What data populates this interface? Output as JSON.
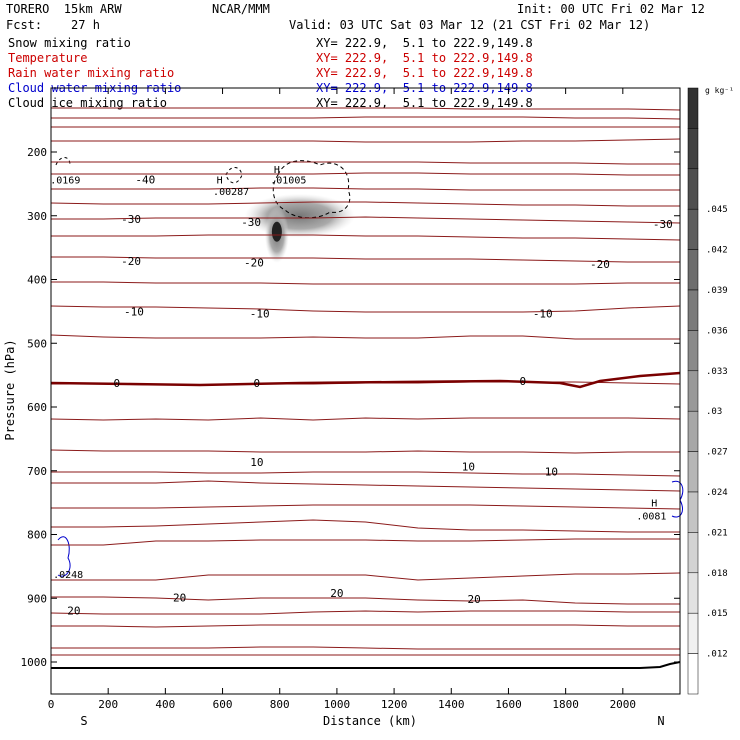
{
  "header": {
    "model": "TORERO  15km ARW",
    "center": "NCAR/MMM",
    "init": "Init: 00 UTC Fri 02 Mar 12",
    "fcst": "Fcst:    27 h",
    "valid": "Valid: 03 UTC Sat 03 Mar 12 (21 CST Fri 02 Mar 12)"
  },
  "fields": [
    {
      "label": "Snow mixing ratio",
      "xy": "XY= 222.9,  5.1 to 222.9,149.8",
      "color": "#000000"
    },
    {
      "label": "Temperature",
      "xy": "XY= 222.9,  5.1 to 222.9,149.8",
      "color": "#cc0000"
    },
    {
      "label": "Rain water mixing ratio",
      "xy": "XY= 222.9,  5.1 to 222.9,149.8",
      "color": "#cc0000"
    },
    {
      "label": "Cloud water mixing ratio",
      "xy": "XY= 222.9,  5.1 to 222.9,149.8",
      "color": "#0000cc"
    },
    {
      "label": "Cloud ice mixing ratio",
      "xy": "XY= 222.9,  5.1 to 222.9,149.8",
      "color": "#000000"
    }
  ],
  "chart_data": {
    "type": "contour cross-section",
    "xlabel": "Distance (km)",
    "ylabel": "Pressure (hPa)",
    "xlim": [
      0,
      2200
    ],
    "ylim": [
      1050,
      100
    ],
    "x_ticks": [
      0,
      200,
      400,
      600,
      800,
      1000,
      1200,
      1400,
      1600,
      1800,
      2000
    ],
    "y_ticks": [
      200,
      300,
      400,
      500,
      600,
      700,
      800,
      900,
      1000
    ],
    "end_labels": {
      "left": "S",
      "right": "N"
    },
    "colorbar": {
      "unit": "g kg⁻¹",
      "ticks": [
        ".045",
        ".042",
        ".039",
        ".036",
        ".033",
        ".03",
        ".027",
        ".024",
        ".021",
        ".018",
        ".015",
        ".012"
      ]
    },
    "temperature_contours": [
      {
        "value": -40,
        "label": "-40",
        "x": 330,
        "p": 243
      },
      {
        "value": -30,
        "label": "-30",
        "x": 280,
        "p": 305
      },
      {
        "value": -30,
        "label": "-30",
        "x": 700,
        "p": 310
      },
      {
        "value": -30,
        "label": "-30",
        "x": 2140,
        "p": 313
      },
      {
        "value": -20,
        "label": "-20",
        "x": 280,
        "p": 371
      },
      {
        "value": -20,
        "label": "-20",
        "x": 710,
        "p": 373
      },
      {
        "value": -20,
        "label": "-20",
        "x": 1920,
        "p": 376
      },
      {
        "value": -10,
        "label": "-10",
        "x": 290,
        "p": 450
      },
      {
        "value": -10,
        "label": "-10",
        "x": 730,
        "p": 453
      },
      {
        "value": -10,
        "label": "-10",
        "x": 1720,
        "p": 453
      },
      {
        "value": 0,
        "label": "0",
        "x": 230,
        "p": 562
      },
      {
        "value": 0,
        "label": "0",
        "x": 720,
        "p": 562
      },
      {
        "value": 0,
        "label": "0",
        "x": 1650,
        "p": 559
      },
      {
        "value": 10,
        "label": "10",
        "x": 720,
        "p": 686
      },
      {
        "value": 10,
        "label": "10",
        "x": 1460,
        "p": 693
      },
      {
        "value": 10,
        "label": "10",
        "x": 1750,
        "p": 701
      },
      {
        "value": 20,
        "label": "20",
        "x": 450,
        "p": 899
      },
      {
        "value": 20,
        "label": "20",
        "x": 1000,
        "p": 892
      },
      {
        "value": 20,
        "label": "20",
        "x": 1480,
        "p": 901
      },
      {
        "value": 20,
        "label": "20",
        "x": 80,
        "p": 919
      }
    ],
    "annotations": [
      {
        "text": "H",
        "x": 790,
        "p": 227
      },
      {
        "text": ".01005",
        "x": 830,
        "p": 243
      },
      {
        "text": "H",
        "x": 590,
        "p": 243
      },
      {
        "text": ".00287",
        "x": 630,
        "p": 261
      },
      {
        "text": ".0169",
        "x": 50,
        "p": 243
      },
      {
        "text": ".0248",
        "x": 60,
        "p": 862
      },
      {
        "text": ".0081",
        "x": 2100,
        "p": 770
      },
      {
        "text": "H",
        "x": 2110,
        "p": 750
      }
    ],
    "grid": false,
    "legend": "top-left"
  }
}
